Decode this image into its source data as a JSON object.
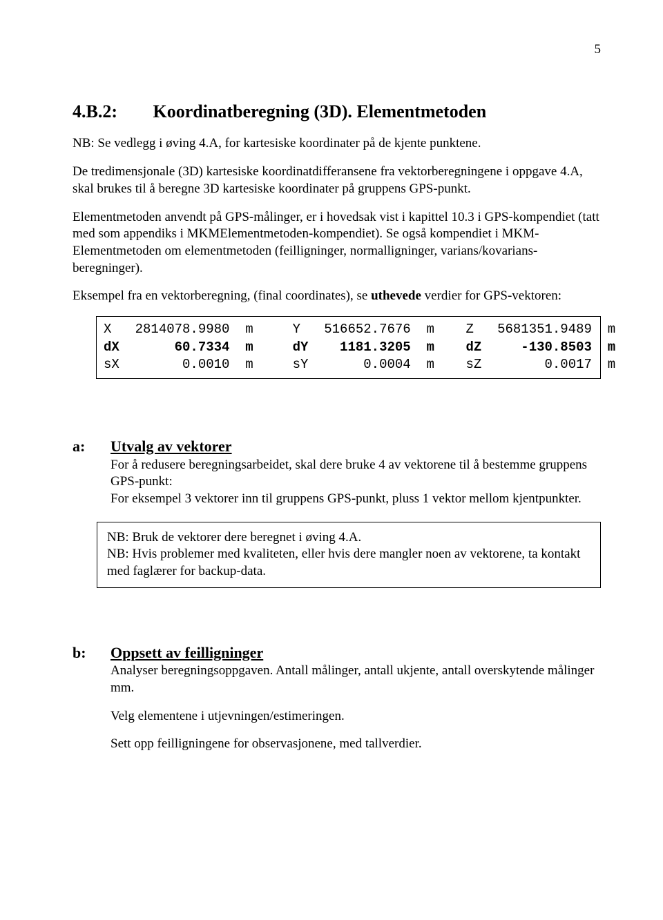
{
  "pageNumber": "5",
  "section": {
    "number": "4.B.2:",
    "title": "Koordinatberegning (3D). Elementmetoden"
  },
  "para1": "NB: Se vedlegg i øving 4.A, for kartesiske koordinater på de kjente punktene.",
  "para2": "De tredimensjonale (3D) kartesiske koordinatdifferansene fra vektorberegningene i oppgave 4.A, skal brukes til å beregne 3D kartesiske koordinater på gruppens GPS-punkt.",
  "para3": "Elementmetoden anvendt på GPS-målinger, er i hovedsak vist i kapittel 10.3 i GPS-kompendiet (tatt med som appendiks i MKMElementmetoden-kompendiet). Se også kompendiet i MKM-Elementmetoden om elementmetoden (feilligninger, normalligninger, varians/kovarians-beregninger).",
  "para4_pre": "Eksempel fra en vektorberegning, (final coordinates), se ",
  "para4_bold": "uthevede",
  "para4_post": " verdier for GPS-vektoren:",
  "dataBox": {
    "line1": "X   2814078.9980  m     Y   516652.7676  m    Z   5681351.9489  m",
    "line2": "dX       60.7334  m     dY    1181.3205  m    dZ     -130.8503  m",
    "line3": "sX        0.0010  m     sY       0.0004  m    sZ        0.0017  m"
  },
  "subA": {
    "letter": "a:",
    "title": "Utvalg av vektorer",
    "body1": "For å redusere beregningsarbeidet, skal dere bruke 4 av vektorene til å bestemme gruppens GPS-punkt:",
    "body2": "For eksempel 3 vektorer inn til gruppens GPS-punkt, pluss 1 vektor mellom kjentpunkter."
  },
  "nbBox": {
    "line1": "NB: Bruk de vektorer dere beregnet i øving 4.A.",
    "line2": "NB: Hvis problemer med kvaliteten, eller hvis dere mangler noen av vektorene, ta kontakt med faglærer for backup-data."
  },
  "subB": {
    "letter": "b:",
    "title": "Oppsett av feilligninger",
    "body1": "Analyser beregningsoppgaven. Antall målinger, antall ukjente, antall overskytende målinger mm.",
    "body2": "Velg elementene i utjevningen/estimeringen.",
    "body3": "Sett opp feilligningene for observasjonene, med tallverdier."
  }
}
